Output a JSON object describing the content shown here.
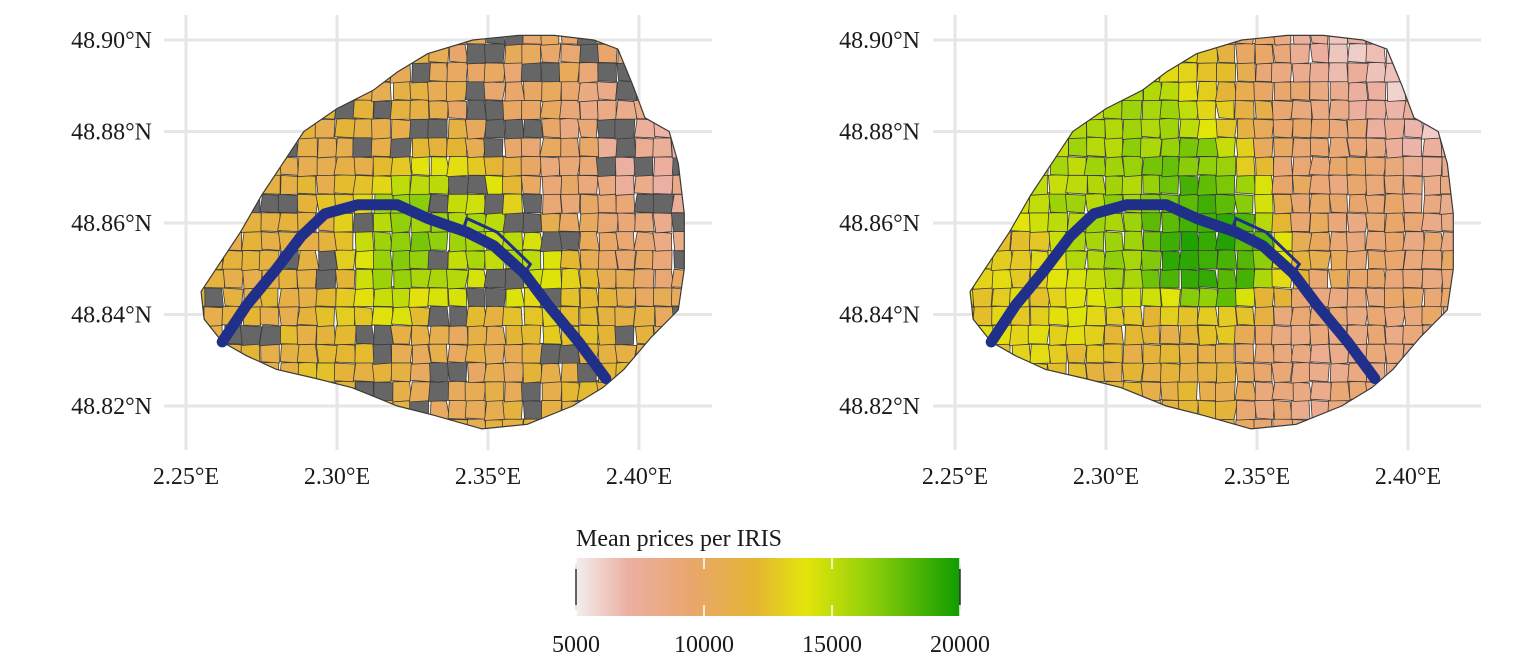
{
  "chart_data": [
    {
      "type": "choropleth",
      "panel": "left",
      "description_units": "longitude/latitude degrees",
      "xlim": [
        2.245,
        2.425
      ],
      "ylim": [
        48.812,
        48.906
      ],
      "x_ticks": [
        2.25,
        2.3,
        2.35,
        2.4
      ],
      "x_tick_labels": [
        "2.25°E",
        "2.30°E",
        "2.35°E",
        "2.40°E"
      ],
      "y_ticks": [
        48.82,
        48.84,
        48.86,
        48.88,
        48.9
      ],
      "y_tick_labels": [
        "48.82°N",
        "48.84°N",
        "48.86°N",
        "48.88°N",
        "48.90°N"
      ],
      "missing_color": "#666666",
      "missing_fraction_estimate": 0.18,
      "regions_sample": [
        {
          "lon": 2.28,
          "lat": 48.85,
          "value": 11500
        },
        {
          "lon": 2.33,
          "lat": 48.855,
          "value": 16500
        },
        {
          "lon": 2.35,
          "lat": 48.853,
          "value": 15000
        },
        {
          "lon": 2.38,
          "lat": 48.87,
          "value": 9500
        },
        {
          "lon": 2.36,
          "lat": 48.89,
          "value": 9800
        },
        {
          "lon": 2.3,
          "lat": 48.88,
          "value": 11200
        },
        {
          "lon": 2.34,
          "lat": 48.83,
          "value": 10500
        },
        {
          "lon": 2.4,
          "lat": 48.875,
          "value": 7500
        }
      ]
    },
    {
      "type": "choropleth",
      "panel": "right",
      "description_units": "longitude/latitude degrees",
      "xlim": [
        2.245,
        2.425
      ],
      "ylim": [
        48.812,
        48.906
      ],
      "x_ticks": [
        2.25,
        2.3,
        2.35,
        2.4
      ],
      "x_tick_labels": [
        "2.25°E",
        "2.30°E",
        "2.35°E",
        "2.40°E"
      ],
      "y_ticks": [
        48.82,
        48.84,
        48.86,
        48.88,
        48.9
      ],
      "y_tick_labels": [
        "48.82°N",
        "48.84°N",
        "48.86°N",
        "48.88°N",
        "48.90°N"
      ],
      "regions_sample": [
        {
          "lon": 2.33,
          "lat": 48.855,
          "value": 19000
        },
        {
          "lon": 2.3,
          "lat": 48.86,
          "value": 16000
        },
        {
          "lon": 2.27,
          "lat": 48.85,
          "value": 13000
        },
        {
          "lon": 2.38,
          "lat": 48.87,
          "value": 9000
        },
        {
          "lon": 2.4,
          "lat": 48.89,
          "value": 6500
        },
        {
          "lon": 2.32,
          "lat": 48.83,
          "value": 11500
        },
        {
          "lon": 2.37,
          "lat": 48.83,
          "value": 8500
        }
      ]
    }
  ],
  "legend": {
    "title": "Mean prices per IRIS",
    "min": 5000,
    "max": 20000,
    "tick_values": [
      5000,
      10000,
      15000,
      20000
    ],
    "tick_labels": [
      "5000",
      "10000",
      "15000",
      "20000"
    ],
    "color_stops": [
      {
        "value": 5000,
        "color": "#f3eeee"
      },
      {
        "value": 7000,
        "color": "#ecb0a3"
      },
      {
        "value": 9500,
        "color": "#e9a66c"
      },
      {
        "value": 12000,
        "color": "#e4b534"
      },
      {
        "value": 14000,
        "color": "#e3e50a"
      },
      {
        "value": 16500,
        "color": "#8fcf0a"
      },
      {
        "value": 20000,
        "color": "#119c00"
      }
    ]
  },
  "colors": {
    "seine": "#1f2f8a",
    "border": "#3a3a3a",
    "grid": "#e6e6e6",
    "missing": "#666666"
  }
}
